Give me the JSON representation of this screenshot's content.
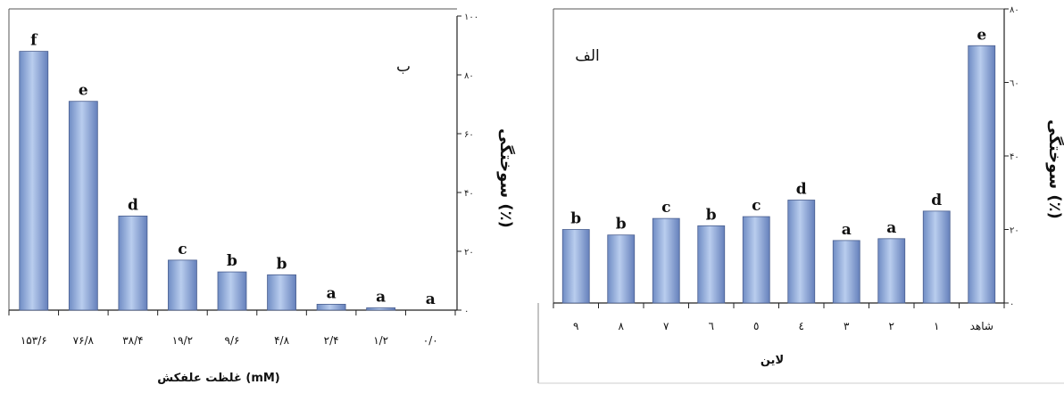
{
  "chart_data": [
    {
      "type": "bar",
      "panel_label": "ب",
      "categories": [
        "۱۵۳/۶",
        "۷۶/۸",
        "۳۸/۴",
        "۱۹/۲",
        "۹/۶",
        "۴/۸",
        "۲/۴",
        "۱/۲",
        "۰/۰"
      ],
      "values": [
        88,
        71,
        32,
        17,
        13,
        12,
        2,
        0.8,
        0
      ],
      "significance": [
        "f",
        "e",
        "d",
        "c",
        "b",
        "b",
        "a",
        "a",
        "a"
      ],
      "xlabel": "غلظت علفکش (mM)",
      "ylabel": "سوختگی (٪)",
      "ylim": [
        0,
        100
      ],
      "yticks": [
        0,
        20,
        40,
        60,
        80,
        100
      ],
      "ytick_labels": [
        "۰",
        "۲۰",
        "۴۰",
        "۶۰",
        "۸۰",
        "۱۰۰"
      ],
      "bar_color": "#8fa9d6"
    },
    {
      "type": "bar",
      "panel_label": "الف",
      "categories": [
        "۹",
        "۸",
        "۷",
        "٦",
        "٥",
        "٤",
        "۳",
        "۲",
        "۱",
        "شاهد"
      ],
      "values": [
        20,
        18.5,
        23,
        21,
        23.5,
        28,
        17,
        17.5,
        25,
        70
      ],
      "significance": [
        "b",
        "b",
        "c",
        "b",
        "c",
        "d",
        "a",
        "a",
        "d",
        "e"
      ],
      "xlabel": "لاین",
      "ylabel": "سوختگی (٪)",
      "ylim": [
        0,
        80
      ],
      "yticks": [
        0,
        20,
        40,
        60,
        80
      ],
      "ytick_labels": [
        "۰",
        "۲۰",
        "۴۰",
        "٦۰",
        "۸۰"
      ],
      "bar_color": "#8fa9d6"
    }
  ]
}
